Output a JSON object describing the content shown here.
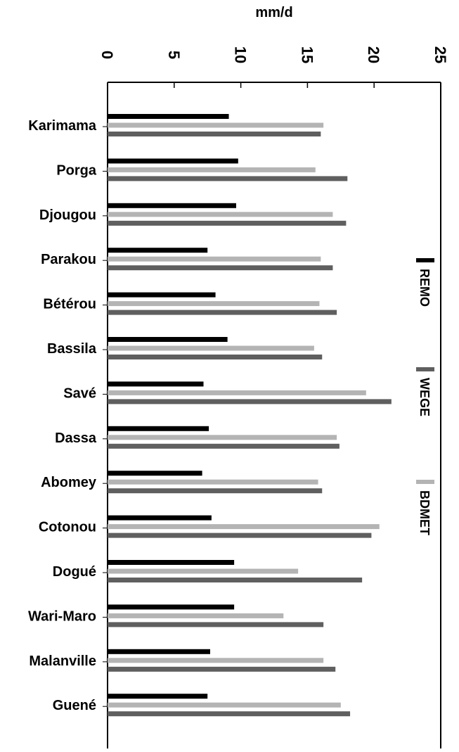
{
  "chart_data": {
    "type": "bar",
    "orientation": "horizontal",
    "x_label": "mm/d",
    "categories": [
      "Karimama",
      "Porga",
      "Djougou",
      "Parakou",
      "Bétérou",
      "Bassila",
      "Savé",
      "Dassa",
      "Abomey",
      "Cotonou",
      "Dogué",
      "Wari-Maro",
      "Malanville",
      "Guené"
    ],
    "series": [
      {
        "name": "REMO",
        "color": "#000000",
        "values": [
          9.1,
          9.8,
          9.65,
          7.5,
          8.1,
          9.0,
          7.2,
          7.6,
          7.1,
          7.8,
          9.5,
          9.5,
          7.7,
          7.5
        ]
      },
      {
        "name": "BDMET",
        "color": "#b4b4b4",
        "values": [
          16.2,
          15.6,
          16.9,
          16.0,
          15.9,
          15.5,
          19.4,
          17.2,
          15.8,
          20.4,
          14.3,
          13.2,
          16.2,
          17.5
        ]
      },
      {
        "name": "WEGE",
        "color": "#5f5f5f",
        "values": [
          16.0,
          18.0,
          17.9,
          16.9,
          17.2,
          16.1,
          21.3,
          17.4,
          16.1,
          19.8,
          19.1,
          16.2,
          17.1,
          18.2
        ]
      }
    ],
    "xlim": [
      0,
      25
    ],
    "xticks": [
      0,
      5,
      10,
      15,
      20,
      25
    ]
  }
}
